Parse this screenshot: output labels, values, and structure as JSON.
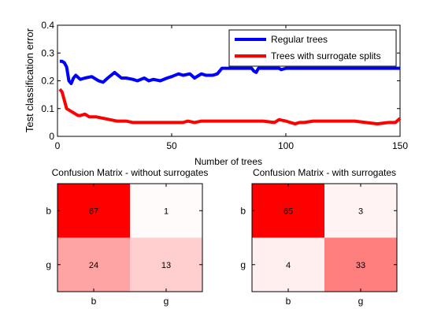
{
  "chart_data": [
    {
      "type": "line",
      "xlabel": "Number of trees",
      "ylabel": "Test classification error",
      "xlim": [
        0,
        150
      ],
      "ylim": [
        0,
        0.4
      ],
      "xticks": [
        "0",
        "50",
        "100",
        "150"
      ],
      "yticks": [
        "0",
        "0.1",
        "0.2",
        "0.3",
        "0.4"
      ],
      "legend_position": "top-right",
      "grid": false,
      "series": [
        {
          "name": "Regular trees",
          "color": "#0000ff",
          "points": [
            [
              1,
              0.27
            ],
            [
              2,
              0.27
            ],
            [
              3,
              0.265
            ],
            [
              4,
              0.25
            ],
            [
              5,
              0.2
            ],
            [
              6,
              0.19
            ],
            [
              7,
              0.21
            ],
            [
              8,
              0.22
            ],
            [
              10,
              0.205
            ],
            [
              12,
              0.21
            ],
            [
              15,
              0.215
            ],
            [
              18,
              0.2
            ],
            [
              20,
              0.195
            ],
            [
              22,
              0.21
            ],
            [
              25,
              0.23
            ],
            [
              28,
              0.21
            ],
            [
              30,
              0.21
            ],
            [
              33,
              0.205
            ],
            [
              35,
              0.2
            ],
            [
              38,
              0.21
            ],
            [
              40,
              0.2
            ],
            [
              42,
              0.205
            ],
            [
              45,
              0.2
            ],
            [
              48,
              0.21
            ],
            [
              50,
              0.215
            ],
            [
              53,
              0.225
            ],
            [
              55,
              0.22
            ],
            [
              58,
              0.225
            ],
            [
              60,
              0.21
            ],
            [
              63,
              0.225
            ],
            [
              65,
              0.22
            ],
            [
              68,
              0.22
            ],
            [
              70,
              0.225
            ],
            [
              72,
              0.245
            ],
            [
              75,
              0.245
            ],
            [
              80,
              0.245
            ],
            [
              85,
              0.245
            ],
            [
              86,
              0.235
            ],
            [
              87,
              0.23
            ],
            [
              88,
              0.245
            ],
            [
              92,
              0.245
            ],
            [
              97,
              0.245
            ],
            [
              98,
              0.24
            ],
            [
              100,
              0.245
            ],
            [
              110,
              0.245
            ],
            [
              120,
              0.245
            ],
            [
              130,
              0.245
            ],
            [
              140,
              0.245
            ],
            [
              150,
              0.245
            ]
          ]
        },
        {
          "name": "Trees with surrogate splits",
          "color": "#ff0000",
          "points": [
            [
              1,
              0.17
            ],
            [
              2,
              0.16
            ],
            [
              3,
              0.13
            ],
            [
              4,
              0.1
            ],
            [
              6,
              0.09
            ],
            [
              8,
              0.08
            ],
            [
              9,
              0.075
            ],
            [
              10,
              0.075
            ],
            [
              12,
              0.08
            ],
            [
              14,
              0.07
            ],
            [
              17,
              0.07
            ],
            [
              20,
              0.065
            ],
            [
              23,
              0.06
            ],
            [
              26,
              0.055
            ],
            [
              30,
              0.055
            ],
            [
              33,
              0.05
            ],
            [
              36,
              0.05
            ],
            [
              40,
              0.05
            ],
            [
              45,
              0.05
            ],
            [
              50,
              0.05
            ],
            [
              55,
              0.05
            ],
            [
              57,
              0.055
            ],
            [
              60,
              0.05
            ],
            [
              63,
              0.055
            ],
            [
              70,
              0.055
            ],
            [
              75,
              0.055
            ],
            [
              80,
              0.055
            ],
            [
              85,
              0.055
            ],
            [
              90,
              0.055
            ],
            [
              95,
              0.05
            ],
            [
              97,
              0.06
            ],
            [
              100,
              0.055
            ],
            [
              102,
              0.05
            ],
            [
              104,
              0.045
            ],
            [
              106,
              0.05
            ],
            [
              108,
              0.05
            ],
            [
              112,
              0.055
            ],
            [
              120,
              0.055
            ],
            [
              130,
              0.055
            ],
            [
              135,
              0.05
            ],
            [
              140,
              0.045
            ],
            [
              145,
              0.05
            ],
            [
              148,
              0.05
            ],
            [
              150,
              0.065
            ]
          ]
        }
      ]
    },
    {
      "type": "heatmap",
      "title": "Confusion Matrix - without surrogates",
      "x_categories": [
        "b",
        "g"
      ],
      "y_categories": [
        "b",
        "g"
      ],
      "values": [
        [
          67,
          1
        ],
        [
          24,
          13
        ]
      ]
    },
    {
      "type": "heatmap",
      "title": "Confusion Matrix - with surrogates",
      "x_categories": [
        "b",
        "g"
      ],
      "y_categories": [
        "b",
        "g"
      ],
      "values": [
        [
          65,
          3
        ],
        [
          4,
          33
        ]
      ]
    }
  ],
  "colors": {
    "heat_high": "#ff0000",
    "heat_low": "#ffffff",
    "axis": "#000000"
  }
}
